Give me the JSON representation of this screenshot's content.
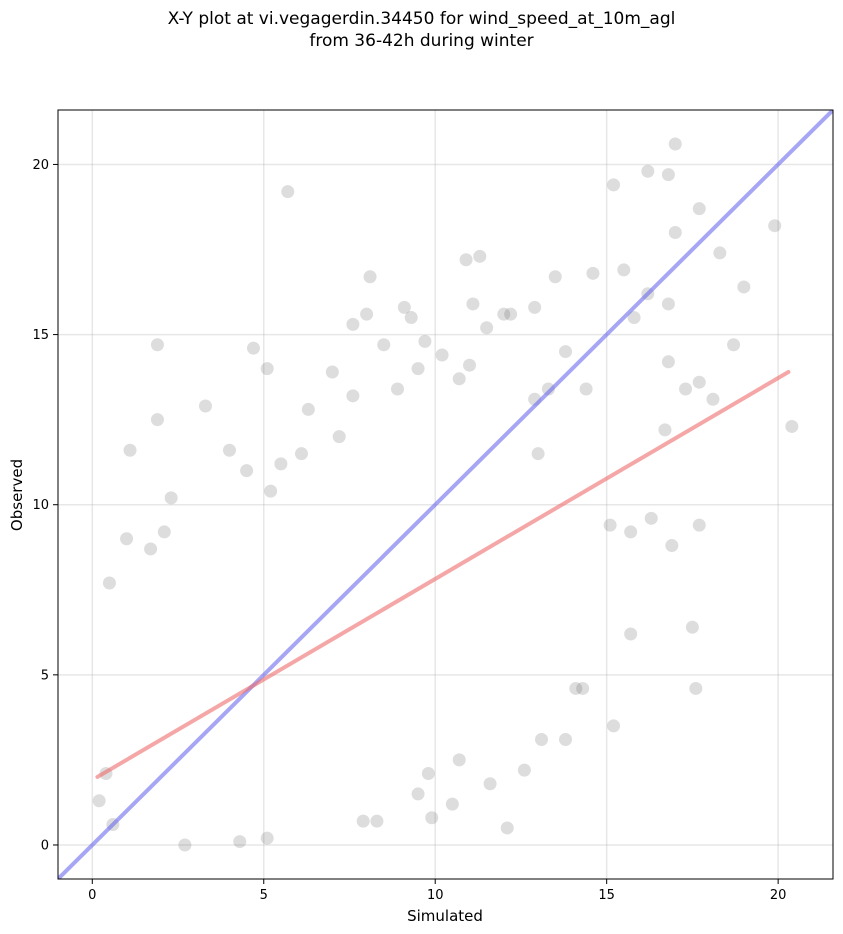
{
  "title": {
    "line1": "X-Y plot at vi.vegagerdin.34450 for wind_speed_at_10m_agl",
    "line2": "from 36-42h during winter"
  },
  "chart_data": {
    "type": "scatter",
    "xlabel": "Simulated",
    "ylabel": "Observed",
    "xlim": [
      -1,
      21.6
    ],
    "ylim": [
      -1,
      21.6
    ],
    "xticks": [
      0,
      5,
      10,
      15,
      20
    ],
    "yticks": [
      0,
      5,
      10,
      15,
      20
    ],
    "grid": true,
    "colors": {
      "points": "#555555",
      "identity_line": "#6b6bef",
      "regression_line": "#ee6d6d"
    },
    "identity_line": {
      "x": [
        -1,
        21.6
      ],
      "y": [
        -1,
        21.6
      ]
    },
    "regression_line": {
      "x": [
        0.15,
        20.3
      ],
      "y": [
        2.0,
        13.9
      ]
    },
    "points": [
      [
        1.9,
        14.7
      ],
      [
        1.1,
        11.6
      ],
      [
        1.9,
        12.5
      ],
      [
        5.7,
        19.2
      ],
      [
        3.3,
        12.9
      ],
      [
        4.7,
        14.6
      ],
      [
        5.1,
        14.0
      ],
      [
        4.0,
        11.6
      ],
      [
        8.5,
        14.7
      ],
      [
        7.0,
        13.9
      ],
      [
        6.3,
        12.8
      ],
      [
        7.6,
        15.3
      ],
      [
        8.0,
        15.6
      ],
      [
        8.1,
        16.7
      ],
      [
        9.1,
        15.8
      ],
      [
        9.3,
        15.5
      ],
      [
        7.6,
        13.2
      ],
      [
        10.9,
        17.2
      ],
      [
        11.3,
        17.3
      ],
      [
        11.1,
        15.9
      ],
      [
        12.2,
        15.6
      ],
      [
        13.5,
        16.7
      ],
      [
        14.6,
        16.8
      ],
      [
        15.2,
        19.4
      ],
      [
        16.2,
        19.8
      ],
      [
        16.8,
        19.7
      ],
      [
        17.0,
        20.6
      ],
      [
        17.0,
        18.0
      ],
      [
        17.7,
        18.7
      ],
      [
        19.9,
        18.2
      ],
      [
        18.3,
        17.4
      ],
      [
        19.0,
        16.4
      ],
      [
        15.5,
        16.9
      ],
      [
        16.2,
        16.2
      ],
      [
        15.8,
        15.5
      ],
      [
        16.8,
        15.9
      ],
      [
        18.7,
        14.7
      ],
      [
        16.8,
        14.2
      ],
      [
        17.3,
        13.4
      ],
      [
        17.7,
        13.6
      ],
      [
        18.1,
        13.1
      ],
      [
        16.7,
        12.2
      ],
      [
        20.4,
        12.3
      ],
      [
        16.3,
        9.6
      ],
      [
        16.9,
        8.8
      ],
      [
        15.7,
        9.2
      ],
      [
        17.7,
        9.4
      ],
      [
        17.5,
        6.4
      ],
      [
        17.6,
        4.6
      ],
      [
        15.7,
        6.2
      ],
      [
        15.2,
        3.5
      ],
      [
        13.8,
        3.1
      ],
      [
        13.1,
        3.1
      ],
      [
        12.6,
        2.2
      ],
      [
        12.1,
        0.5
      ],
      [
        9.9,
        0.8
      ],
      [
        11.6,
        1.8
      ],
      [
        10.7,
        2.5
      ],
      [
        9.5,
        1.5
      ],
      [
        9.8,
        2.1
      ],
      [
        10.5,
        1.2
      ],
      [
        0.2,
        1.3
      ],
      [
        0.4,
        2.1
      ],
      [
        0.6,
        0.6
      ],
      [
        2.7,
        0.0
      ],
      [
        4.3,
        0.1
      ],
      [
        5.1,
        0.2
      ],
      [
        7.9,
        0.7
      ],
      [
        8.3,
        0.7
      ],
      [
        14.3,
        4.6
      ],
      [
        14.1,
        4.6
      ],
      [
        15.1,
        9.4
      ],
      [
        12.9,
        15.8
      ],
      [
        9.7,
        14.8
      ],
      [
        10.2,
        14.4
      ],
      [
        13.8,
        14.5
      ],
      [
        13.3,
        13.4
      ],
      [
        12.9,
        13.1
      ],
      [
        14.4,
        13.4
      ],
      [
        13.0,
        11.5
      ],
      [
        2.3,
        10.2
      ],
      [
        2.1,
        9.2
      ],
      [
        1.7,
        8.7
      ],
      [
        1.0,
        9.0
      ],
      [
        0.5,
        7.7
      ],
      [
        4.5,
        11.0
      ],
      [
        6.1,
        11.5
      ],
      [
        5.2,
        10.4
      ],
      [
        12.0,
        15.6
      ],
      [
        11.5,
        15.2
      ],
      [
        11.0,
        14.1
      ],
      [
        10.7,
        13.7
      ],
      [
        9.5,
        14.0
      ],
      [
        8.9,
        13.4
      ],
      [
        5.5,
        11.2
      ],
      [
        7.2,
        12.0
      ]
    ]
  }
}
